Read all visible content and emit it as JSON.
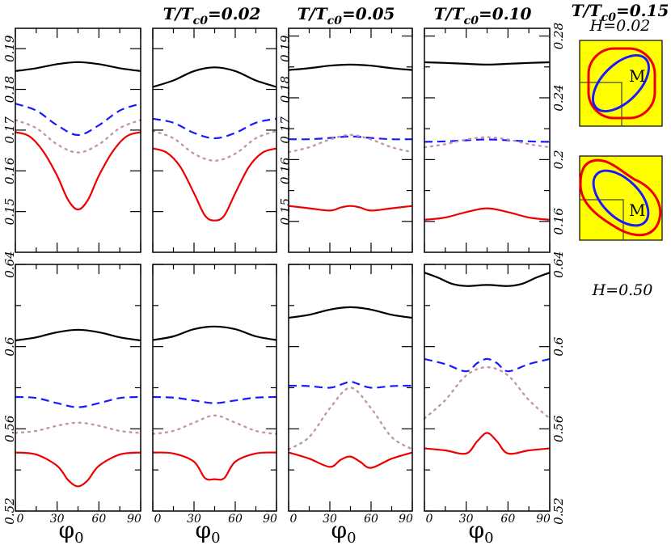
{
  "column_titles": [
    {
      "prefix": "T/T",
      "sub": "c0",
      "value": "=0.02"
    },
    {
      "prefix": "T/T",
      "sub": "c0",
      "value": "=0.05"
    },
    {
      "prefix": "T/T",
      "sub": "c0",
      "value": "=0.10"
    },
    {
      "prefix": "T/T",
      "sub": "c0",
      "value": "=0.15"
    }
  ],
  "x_axis": {
    "label": "φ",
    "label_sub": "0",
    "range": [
      0,
      90
    ],
    "ticks": [
      "0",
      "30",
      "60",
      "90"
    ]
  },
  "field_labels": {
    "top": "H=0.02",
    "bottom": "H=0.50"
  },
  "inset_label": "M",
  "colors": {
    "black": "#000000",
    "blue": "#1a1aff",
    "dotted": "#c095b0",
    "red": "#ee0000",
    "inset_bg": "#ffff00",
    "inset_outer": "#ee0000",
    "inset_inner": "#1a1aff"
  },
  "chart_data": [
    {
      "type": "line",
      "row": "H=0.02",
      "title": "T/Tc0=0.02",
      "ylim": [
        0.14,
        0.195
      ],
      "yticks": [
        "0.15",
        "0.16",
        "0.17",
        "0.18",
        "0.19"
      ],
      "series": [
        {
          "color": "black",
          "style": "solid",
          "x": [
            0,
            15,
            30,
            45,
            60,
            75,
            90
          ],
          "y": [
            0.1845,
            0.1852,
            0.1862,
            0.1867,
            0.1862,
            0.1852,
            0.1845
          ]
        },
        {
          "color": "blue",
          "style": "dashed",
          "x": [
            0,
            15,
            30,
            45,
            60,
            75,
            90
          ],
          "y": [
            0.1765,
            0.1748,
            0.1712,
            0.1688,
            0.1712,
            0.1748,
            0.1765
          ]
        },
        {
          "color": "dotted",
          "style": "dotted",
          "x": [
            0,
            15,
            30,
            45,
            60,
            75,
            90
          ],
          "y": [
            0.1725,
            0.1705,
            0.1665,
            0.1645,
            0.1665,
            0.1705,
            0.1725
          ]
        },
        {
          "color": "red",
          "style": "solid",
          "x": [
            0,
            10,
            20,
            30,
            38,
            45,
            52,
            60,
            70,
            80,
            90
          ],
          "y": [
            0.1695,
            0.1685,
            0.1648,
            0.1588,
            0.1528,
            0.1505,
            0.1528,
            0.1588,
            0.1648,
            0.1685,
            0.1695
          ]
        }
      ]
    },
    {
      "type": "line",
      "row": "H=0.02",
      "title": "T/Tc0=0.05",
      "ylim": [
        0.14,
        0.195
      ],
      "yticks": [
        "0.15",
        "0.16",
        "0.17",
        "0.18",
        "0.19"
      ],
      "series": [
        {
          "color": "black",
          "style": "solid",
          "x": [
            0,
            15,
            30,
            45,
            60,
            75,
            90
          ],
          "y": [
            0.1806,
            0.1822,
            0.1845,
            0.1854,
            0.1845,
            0.1822,
            0.1806
          ]
        },
        {
          "color": "blue",
          "style": "dashed",
          "x": [
            0,
            15,
            30,
            45,
            60,
            75,
            90
          ],
          "y": [
            0.1728,
            0.1718,
            0.1693,
            0.168,
            0.1693,
            0.1718,
            0.1728
          ]
        },
        {
          "color": "dotted",
          "style": "dotted",
          "x": [
            0,
            15,
            30,
            45,
            60,
            75,
            90
          ],
          "y": [
            0.1698,
            0.168,
            0.1642,
            0.1625,
            0.1642,
            0.168,
            0.1698
          ]
        },
        {
          "color": "red",
          "style": "solid",
          "x": [
            0,
            10,
            20,
            30,
            38,
            45,
            52,
            60,
            70,
            80,
            90
          ],
          "y": [
            0.1655,
            0.1645,
            0.161,
            0.1545,
            0.149,
            0.1478,
            0.149,
            0.1545,
            0.161,
            0.1645,
            0.1655
          ]
        }
      ]
    },
    {
      "type": "line",
      "row": "H=0.02",
      "title": "T/Tc0=0.10",
      "ylim": [
        0.14,
        0.285
      ],
      "yticks": [],
      "series": [
        {
          "color": "black",
          "style": "solid",
          "x": [
            0,
            15,
            30,
            45,
            60,
            75,
            90
          ],
          "y": [
            0.258,
            0.2592,
            0.2608,
            0.2615,
            0.2608,
            0.2592,
            0.258
          ]
        },
        {
          "color": "blue",
          "style": "dashed",
          "x": [
            0,
            15,
            30,
            45,
            60,
            75,
            90
          ],
          "y": [
            0.2132,
            0.2132,
            0.214,
            0.215,
            0.214,
            0.2132,
            0.2132
          ]
        },
        {
          "color": "dotted",
          "style": "dotted",
          "x": [
            0,
            15,
            30,
            45,
            60,
            75,
            90
          ],
          "y": [
            0.2048,
            0.208,
            0.213,
            0.216,
            0.213,
            0.208,
            0.2048
          ]
        },
        {
          "color": "red",
          "style": "solid",
          "x": [
            0,
            15,
            30,
            38,
            45,
            52,
            60,
            75,
            90
          ],
          "y": [
            0.17,
            0.1685,
            0.167,
            0.169,
            0.17,
            0.169,
            0.167,
            0.1685,
            0.17
          ]
        }
      ]
    },
    {
      "type": "line",
      "row": "H=0.02",
      "title": "T/Tc0=0.15",
      "ylim": [
        0.14,
        0.285
      ],
      "yticks": [
        "0.16",
        "0.2",
        "0.24",
        "0.28"
      ],
      "series": [
        {
          "color": "black",
          "style": "solid",
          "x": [
            0,
            15,
            30,
            45,
            60,
            75,
            90
          ],
          "y": [
            0.263,
            0.2626,
            0.262,
            0.2615,
            0.262,
            0.2626,
            0.263
          ]
        },
        {
          "color": "blue",
          "style": "dashed",
          "x": [
            0,
            15,
            30,
            45,
            60,
            75,
            90
          ],
          "y": [
            0.2115,
            0.2118,
            0.2125,
            0.213,
            0.2125,
            0.2118,
            0.2115
          ]
        },
        {
          "color": "dotted",
          "style": "dotted",
          "x": [
            0,
            15,
            30,
            45,
            60,
            75,
            90
          ],
          "y": [
            0.208,
            0.21,
            0.213,
            0.2145,
            0.213,
            0.21,
            0.208
          ]
        },
        {
          "color": "red",
          "style": "solid",
          "x": [
            0,
            15,
            30,
            45,
            60,
            75,
            90
          ],
          "y": [
            0.161,
            0.1625,
            0.166,
            0.1685,
            0.166,
            0.1625,
            0.161
          ]
        }
      ]
    },
    {
      "type": "line",
      "row": "H=0.50",
      "title": "",
      "ylim": [
        0.52,
        0.64
      ],
      "yticks": [
        "0.52",
        "0.56",
        "0.6",
        "0.64"
      ],
      "series": [
        {
          "color": "black",
          "style": "solid",
          "x": [
            0,
            15,
            30,
            45,
            60,
            75,
            90
          ],
          "y": [
            0.603,
            0.6045,
            0.607,
            0.6082,
            0.607,
            0.6045,
            0.603
          ]
        },
        {
          "color": "blue",
          "style": "dashed",
          "x": [
            0,
            15,
            30,
            45,
            60,
            75,
            90
          ],
          "y": [
            0.5755,
            0.575,
            0.5725,
            0.5705,
            0.5725,
            0.575,
            0.5755
          ]
        },
        {
          "color": "dotted",
          "style": "dotted",
          "x": [
            0,
            15,
            30,
            45,
            60,
            75,
            90
          ],
          "y": [
            0.558,
            0.559,
            0.5615,
            0.563,
            0.5615,
            0.559,
            0.558
          ]
        },
        {
          "color": "red",
          "style": "solid",
          "x": [
            0,
            15,
            30,
            38,
            45,
            52,
            60,
            75,
            90
          ],
          "y": [
            0.5485,
            0.5475,
            0.542,
            0.535,
            0.532,
            0.535,
            0.542,
            0.5475,
            0.5485
          ]
        }
      ]
    },
    {
      "type": "line",
      "row": "H=0.50",
      "title": "",
      "ylim": [
        0.52,
        0.64
      ],
      "yticks": [],
      "series": [
        {
          "color": "black",
          "style": "solid",
          "x": [
            0,
            15,
            30,
            45,
            60,
            75,
            90
          ],
          "y": [
            0.6032,
            0.605,
            0.6085,
            0.6098,
            0.6085,
            0.605,
            0.6032
          ]
        },
        {
          "color": "blue",
          "style": "dashed",
          "x": [
            0,
            15,
            30,
            45,
            60,
            75,
            90
          ],
          "y": [
            0.5755,
            0.5752,
            0.5738,
            0.5725,
            0.5738,
            0.5752,
            0.5755
          ]
        },
        {
          "color": "dotted",
          "style": "dotted",
          "x": [
            0,
            15,
            30,
            45,
            60,
            75,
            90
          ],
          "y": [
            0.5575,
            0.559,
            0.563,
            0.5665,
            0.563,
            0.559,
            0.5575
          ]
        },
        {
          "color": "red",
          "style": "solid",
          "x": [
            0,
            15,
            30,
            38,
            45,
            52,
            60,
            75,
            90
          ],
          "y": [
            0.5485,
            0.548,
            0.544,
            0.536,
            0.5355,
            0.536,
            0.544,
            0.548,
            0.5485
          ]
        }
      ]
    },
    {
      "type": "line",
      "row": "H=0.50",
      "title": "",
      "ylim": [
        0.52,
        0.64
      ],
      "yticks": [],
      "series": [
        {
          "color": "black",
          "style": "solid",
          "x": [
            0,
            15,
            30,
            45,
            60,
            75,
            90
          ],
          "y": [
            0.614,
            0.6155,
            0.618,
            0.6192,
            0.618,
            0.6155,
            0.614
          ]
        },
        {
          "color": "blue",
          "style": "dashed",
          "x": [
            0,
            15,
            30,
            40,
            45,
            50,
            60,
            75,
            90
          ],
          "y": [
            0.581,
            0.5808,
            0.58,
            0.582,
            0.583,
            0.582,
            0.58,
            0.5808,
            0.581
          ]
        },
        {
          "color": "dotted",
          "style": "dotted",
          "x": [
            0,
            15,
            30,
            45,
            60,
            75,
            90
          ],
          "y": [
            0.55,
            0.556,
            0.57,
            0.58,
            0.57,
            0.556,
            0.55
          ]
        },
        {
          "color": "red",
          "style": "solid",
          "x": [
            0,
            15,
            30,
            38,
            45,
            52,
            60,
            75,
            90
          ],
          "y": [
            0.5485,
            0.5455,
            0.5415,
            0.545,
            0.5465,
            0.544,
            0.541,
            0.5455,
            0.5485
          ]
        }
      ]
    },
    {
      "type": "line",
      "row": "H=0.50",
      "title": "",
      "ylim": [
        0.52,
        0.64
      ],
      "yticks": [
        "0.52",
        "0.56",
        "0.6",
        "0.64"
      ],
      "series": [
        {
          "color": "black",
          "style": "solid",
          "x": [
            0,
            10,
            20,
            30,
            45,
            60,
            70,
            80,
            90
          ],
          "y": [
            0.636,
            0.6335,
            0.6305,
            0.6295,
            0.63,
            0.6295,
            0.6305,
            0.6335,
            0.636
          ]
        },
        {
          "color": "blue",
          "style": "dashed",
          "x": [
            0,
            15,
            30,
            38,
            45,
            52,
            60,
            75,
            90
          ],
          "y": [
            0.594,
            0.5915,
            0.588,
            0.592,
            0.594,
            0.592,
            0.588,
            0.5915,
            0.594
          ]
        },
        {
          "color": "dotted",
          "style": "dotted",
          "x": [
            0,
            15,
            30,
            45,
            60,
            75,
            90
          ],
          "y": [
            0.565,
            0.574,
            0.586,
            0.59,
            0.586,
            0.574,
            0.565
          ]
        },
        {
          "color": "red",
          "style": "solid",
          "x": [
            0,
            15,
            30,
            38,
            45,
            52,
            60,
            75,
            90
          ],
          "y": [
            0.5505,
            0.5495,
            0.548,
            0.554,
            0.558,
            0.554,
            0.548,
            0.5495,
            0.5505
          ]
        }
      ]
    }
  ]
}
